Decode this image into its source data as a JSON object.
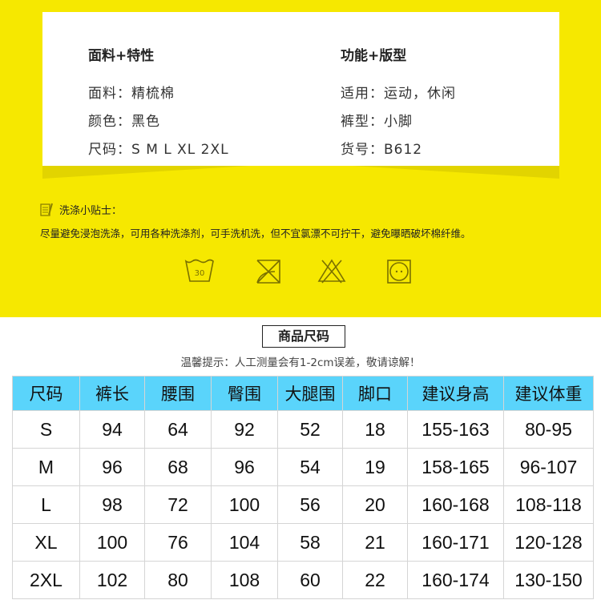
{
  "features": {
    "left": {
      "title": "面料+特性",
      "lines": [
        "面料：精梳棉",
        "颜色：黑色",
        "尺码：S M L XL 2XL"
      ]
    },
    "right": {
      "title": "功能+版型",
      "lines": [
        "适用：运动，休闲",
        "裤型：小脚",
        "货号：B612"
      ]
    }
  },
  "care": {
    "title": "洗涤小贴士：",
    "text": "尽量避免浸泡洗涤，可用各种洗涤剂，可手洗机洗，但不宜氯漂不可拧干，避免曝晒破坏棉纤维。",
    "icons": [
      "wash-30-icon",
      "no-tumble-dry-icon",
      "no-bleach-icon",
      "dry-clean-icon"
    ],
    "wash_temp": "30"
  },
  "size": {
    "title": "商品尺码",
    "note": "温馨提示：人工测量会有1-2cm误差，敬请谅解！",
    "headers": [
      "尺码",
      "裤长",
      "腰围",
      "臀围",
      "大腿围",
      "脚口",
      "建议身高",
      "建议体重"
    ],
    "rows": [
      [
        "S",
        "94",
        "64",
        "92",
        "52",
        "18",
        "155-163",
        "80-95"
      ],
      [
        "M",
        "96",
        "68",
        "96",
        "54",
        "19",
        "158-165",
        "96-107"
      ],
      [
        "L",
        "98",
        "72",
        "100",
        "56",
        "20",
        "160-168",
        "108-118"
      ],
      [
        "XL",
        "100",
        "76",
        "104",
        "58",
        "21",
        "160-171",
        "120-128"
      ],
      [
        "2XL",
        "102",
        "80",
        "108",
        "60",
        "22",
        "160-174",
        "130-150"
      ]
    ]
  },
  "colors": {
    "yellow": "#f6e800",
    "header_blue": "#5ad4fb"
  }
}
